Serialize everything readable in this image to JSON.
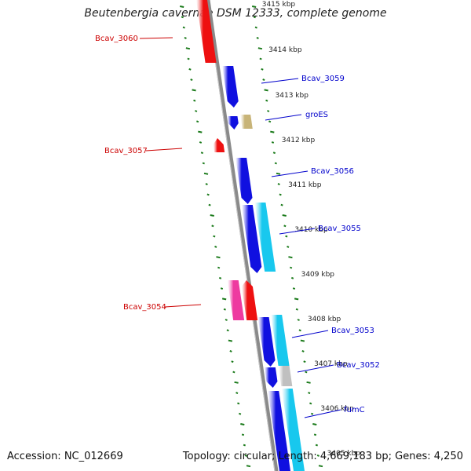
{
  "title": "Beutenbergia cavernae DSM 12333, complete genome",
  "footer": {
    "accession": "Accession: NC_012669",
    "topology": "Topology: circular; Length: 4,669,183 bp; Genes: 4,250"
  },
  "colors": {
    "forward_gene": "#1010e0",
    "reverse_gene": "#ee1010",
    "cds_cyan": "#18c8ee",
    "cds_tan": "#c8b478",
    "cds_gray": "#c0c0c0",
    "pink": "#ee3aa0",
    "ticks": "#1a7a1a",
    "label_blue": "#0000cc",
    "label_red": "#cc0000"
  },
  "kbp_labels": [
    "3415 kbp",
    "3414 kbp",
    "3413 kbp",
    "3412 kbp",
    "3411 kbp",
    "3410 kbp",
    "3409 kbp",
    "3408 kbp",
    "3407 kbp",
    "3406 kbp",
    "3405 kbp"
  ],
  "gene_labels": [
    {
      "name": "Bcav_3060",
      "side": "left"
    },
    {
      "name": "Bcav_3059",
      "side": "right"
    },
    {
      "name": "groES",
      "side": "right"
    },
    {
      "name": "Bcav_3057",
      "side": "left"
    },
    {
      "name": "Bcav_3056",
      "side": "right"
    },
    {
      "name": "Bcav_3055",
      "side": "right"
    },
    {
      "name": "Bcav_3054",
      "side": "left"
    },
    {
      "name": "Bcav_3053",
      "side": "right"
    },
    {
      "name": "Bcav_3052",
      "side": "right"
    },
    {
      "name": "fumC",
      "side": "right"
    }
  ]
}
